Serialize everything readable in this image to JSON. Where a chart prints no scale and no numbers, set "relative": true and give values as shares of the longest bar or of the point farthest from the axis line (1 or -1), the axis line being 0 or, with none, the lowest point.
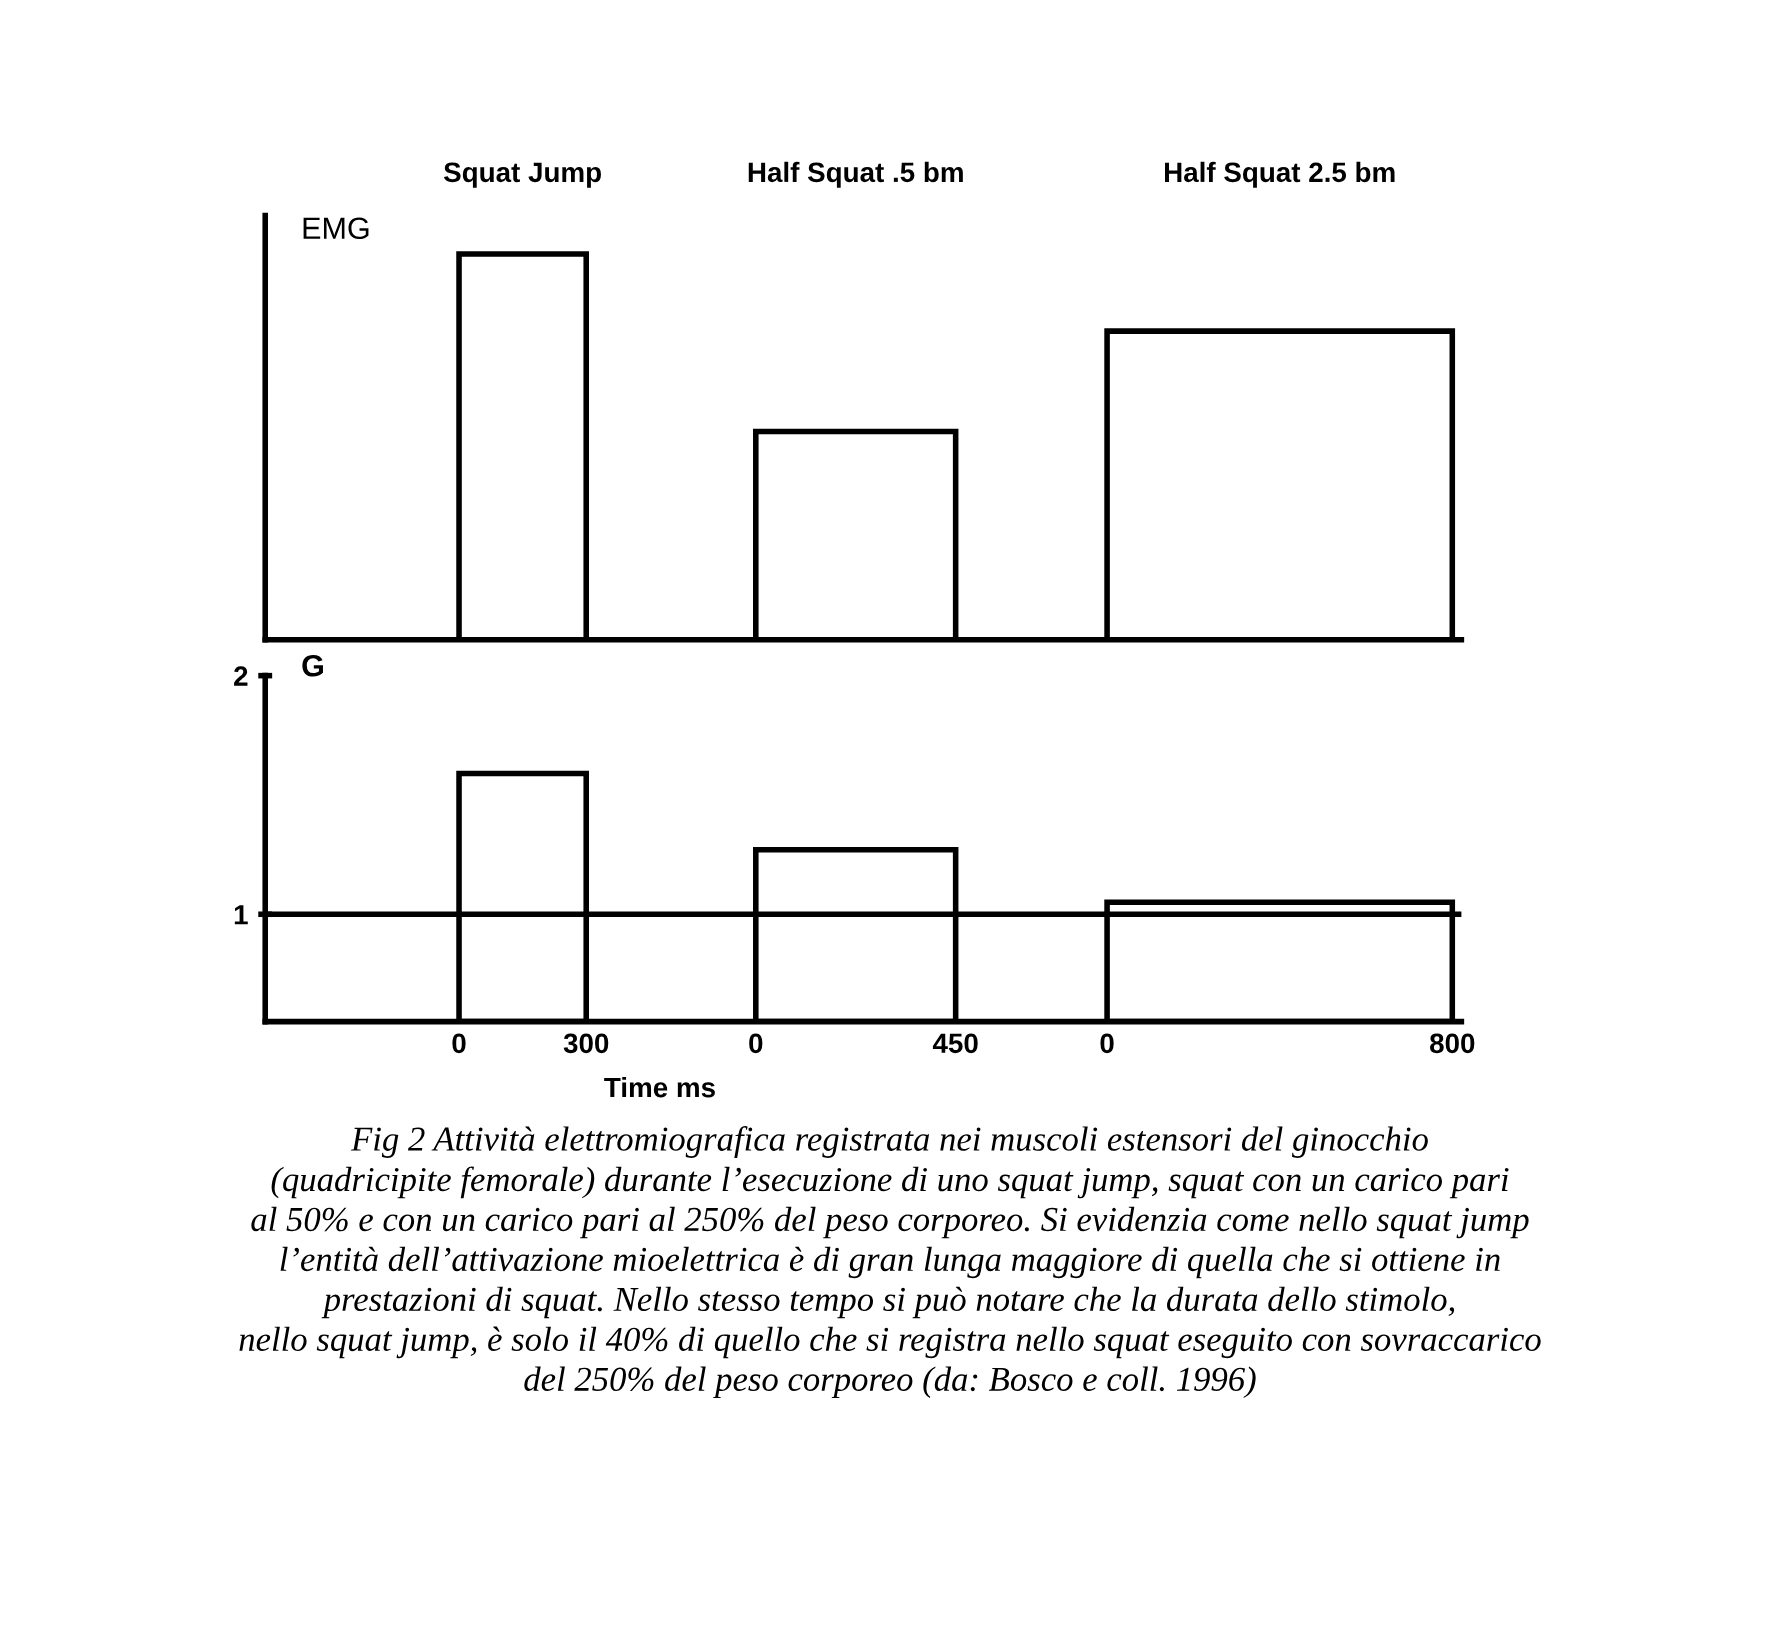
{
  "chart_data": [
    {
      "type": "bar",
      "ylabel": "EMG",
      "categories": [
        "Squat Jump",
        "Half Squat .5 bm",
        "Half Squat 2.5 bm"
      ],
      "relative": true,
      "series": [
        {
          "color": "#000000",
          "values": [
            1.0,
            0.54,
            0.8
          ]
        }
      ]
    },
    {
      "type": "bar",
      "ylabel": "G",
      "xlabel": "Time ms",
      "categories": [
        null,
        null,
        null
      ],
      "ylim": [
        0.55,
        2
      ],
      "yticks": [
        1,
        2
      ],
      "series": [
        {
          "color": "#000000",
          "values": [
            1.59,
            1.27,
            1.05
          ]
        }
      ],
      "ref_lines": [
        {
          "axis": "y",
          "value": 1,
          "color": "#000000"
        }
      ],
      "annotations": [
        "0",
        "300",
        "0",
        "450",
        "0",
        "800",
        "Fig 2 Attività elettromiografica registrata nei muscoli estensori del ginocchio\n(quadricipite femorale) durante l’esecuzione di uno squat jump, squat con un carico pari\nal 50% e con un carico pari al 250% del peso corporeo. Si evidenzia come nello squat jump\nl’entità dell’attivazione mioelettrica è di gran lunga maggiore di quella che si ottiene in\nprestazioni di squat. Nello stesso tempo si può notare che la durata dello stimolo,\nnello squat jump, è solo il 40% di quello che si registra nello squat eseguito con sovraccarico\ndel 250% del peso corporeo (da: Bosco e coll. 1996)"
      ]
    }
  ]
}
